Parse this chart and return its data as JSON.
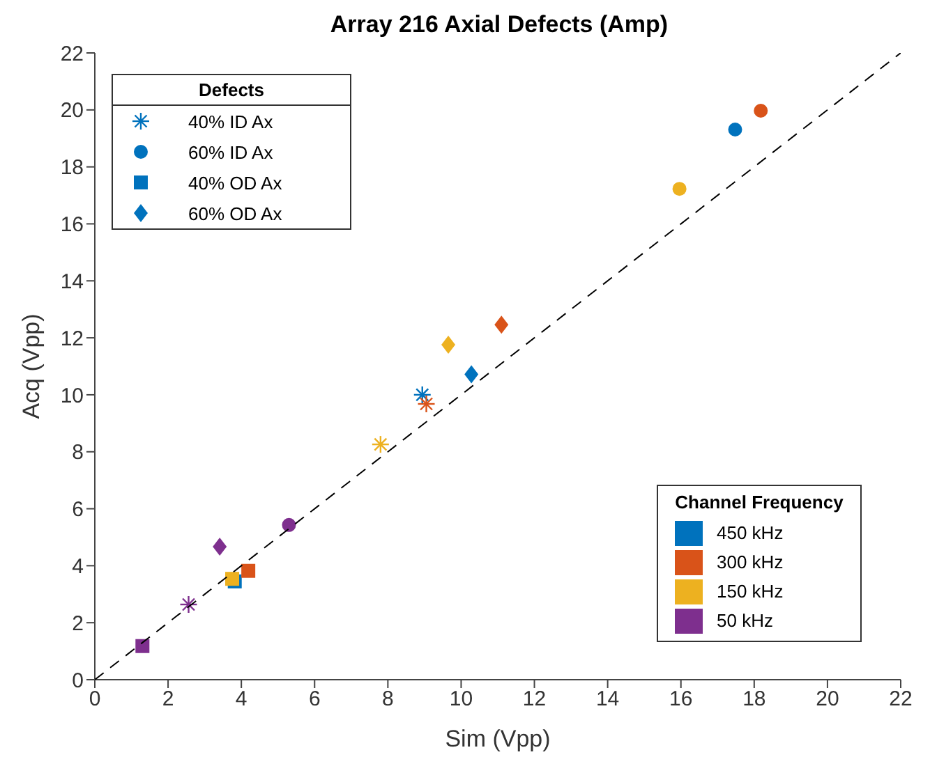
{
  "chart_data": {
    "type": "scatter",
    "title": "Array 216 Axial Defects (Amp)",
    "xlabel": "Sim (Vpp)",
    "ylabel": "Acq (Vpp)",
    "legend_title": "Defects",
    "legend": "top left",
    "xlim": [
      0,
      22
    ],
    "ylim": [
      0,
      22
    ],
    "xticks": [
      0,
      2,
      4,
      6,
      8,
      10,
      12,
      14,
      16,
      18,
      20,
      22
    ],
    "yticks": [
      0,
      2,
      4,
      6,
      8,
      10,
      12,
      14,
      16,
      18,
      20,
      22
    ],
    "annotations": [
      "Channel Frequency",
      "450 kHz",
      "300 kHz",
      "150 kHz",
      "50 kHz"
    ],
    "series": [
      {
        "name": "40% ID Ax",
        "marker": "cross",
        "color": "#0072bd",
        "x": [
          8.94,
          9.05,
          7.8,
          2.56
        ],
        "values": [
          10.0,
          9.68,
          8.26,
          2.64
        ],
        "colors": [
          "#0072bd",
          "#d95319",
          "#edb120",
          "#7e2f8e"
        ]
      },
      {
        "name": "60% ID Ax",
        "marker": "circle",
        "color": "#0072bd",
        "x": [
          17.48,
          18.18,
          15.96,
          5.3
        ],
        "values": [
          19.31,
          19.97,
          17.23,
          5.43
        ],
        "colors": [
          "#0072bd",
          "#d95319",
          "#edb120",
          "#7e2f8e"
        ]
      },
      {
        "name": "40% OD Ax",
        "marker": "square",
        "color": "#0072bd",
        "x": [
          3.82,
          4.19,
          3.75,
          1.3
        ],
        "values": [
          3.45,
          3.82,
          3.54,
          1.18
        ],
        "colors": [
          "#0072bd",
          "#d95319",
          "#edb120",
          "#7e2f8e"
        ]
      },
      {
        "name": "60% OD Ax",
        "marker": "diamond",
        "color": "#0072bd",
        "x": [
          10.28,
          11.1,
          9.65,
          3.41
        ],
        "values": [
          10.72,
          12.46,
          11.76,
          4.67
        ],
        "colors": [
          "#0072bd",
          "#d95319",
          "#edb120",
          "#7e2f8e"
        ]
      },
      {
        "type": "line",
        "color": "#000000",
        "line_style": "dashed",
        "marker": "none",
        "x": [
          0,
          22
        ],
        "values": [
          0,
          22
        ]
      }
    ]
  }
}
